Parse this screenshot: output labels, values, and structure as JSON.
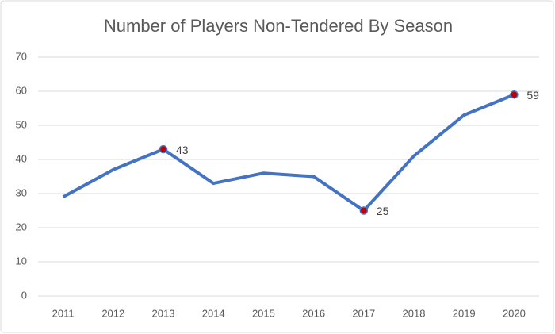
{
  "chart_data": {
    "type": "line",
    "title": "Number of Players Non-Tendered By Season",
    "categories": [
      "2011",
      "2012",
      "2013",
      "2014",
      "2015",
      "2016",
      "2017",
      "2018",
      "2019",
      "2020"
    ],
    "series": [
      {
        "name": "Players Non-Tendered",
        "color": "#4472c4",
        "values": [
          29,
          37,
          43,
          33,
          36,
          35,
          25,
          41,
          53,
          59
        ],
        "data_labels": [
          false,
          false,
          true,
          false,
          false,
          false,
          true,
          false,
          false,
          true
        ],
        "marker_color": "#c00000"
      }
    ],
    "ylim": [
      0,
      70
    ],
    "yticks": [
      0,
      10,
      20,
      30,
      40,
      50,
      60,
      70
    ],
    "grid": true
  }
}
